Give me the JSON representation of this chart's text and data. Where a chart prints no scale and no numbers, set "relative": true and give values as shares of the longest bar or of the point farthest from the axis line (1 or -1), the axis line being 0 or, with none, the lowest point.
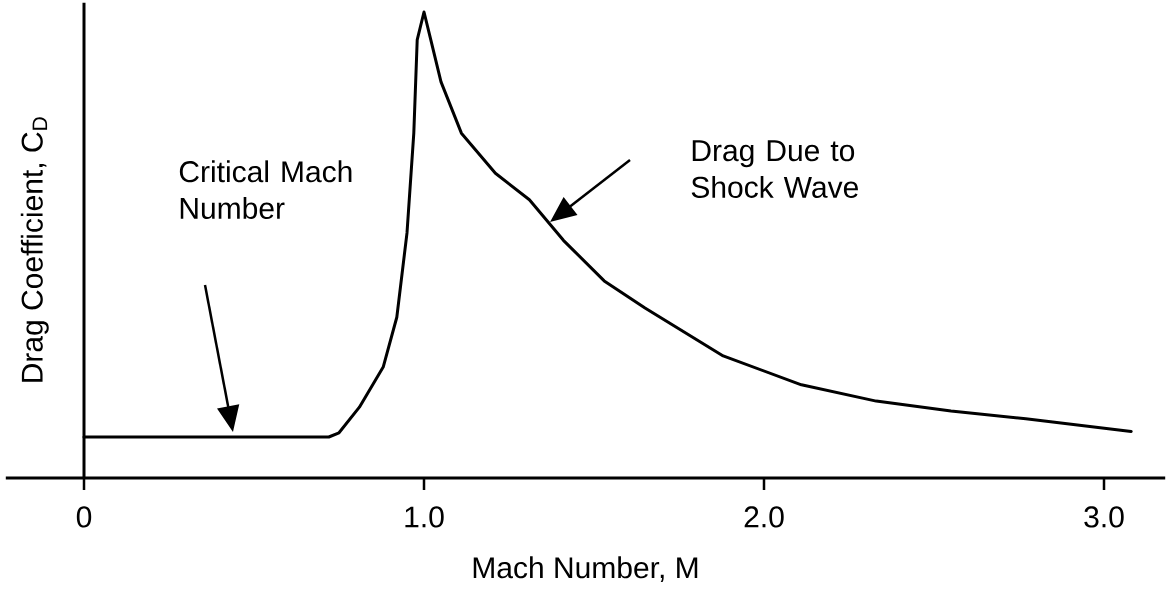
{
  "chart_data": {
    "type": "line",
    "xlabel": "Mach Number, M",
    "ylabel": "Drag Coefficient, C$_{D}$",
    "relative": true,
    "marker": "none",
    "line_style": "solid",
    "xlim": [
      -0.23,
      3.18
    ],
    "xticks": [
      0,
      {
        "value": 1,
        "label": "1.0"
      },
      {
        "value": 2,
        "label": "2.0"
      },
      {
        "value": 3,
        "label": "3.0"
      }
    ],
    "x": [
      0,
      0.72,
      0.75,
      0.81,
      0.88,
      0.92,
      0.95,
      0.97,
      0.98,
      1.0,
      1.02,
      1.05,
      1.11,
      1.21,
      1.31,
      1.41,
      1.53,
      1.65,
      1.88,
      2.11,
      2.33,
      2.55,
      2.77,
      3.08
    ],
    "series": [
      {
        "color": "#000000",
        "values": [
          0.088,
          0.088,
          0.097,
          0.152,
          0.238,
          0.345,
          0.526,
          0.74,
          0.94,
          1.0,
          0.94,
          0.85,
          0.74,
          0.654,
          0.597,
          0.51,
          0.423,
          0.365,
          0.262,
          0.2,
          0.165,
          0.144,
          0.127,
          0.1
        ]
      }
    ],
    "annotations": [
      "Critical Mach Number",
      "Drag Due to Shock Wave"
    ]
  }
}
